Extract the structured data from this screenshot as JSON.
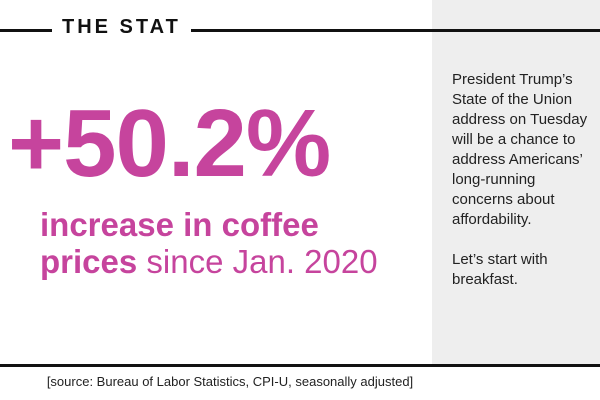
{
  "header": {
    "title": "THE STAT"
  },
  "stat": {
    "value": "+50.2%",
    "headline_bold": "increase in coffee prices",
    "headline_rest": "since Jan. 2020"
  },
  "sidebar": {
    "paragraphs": [
      "President Trump’s State of the Union address on Tuesday will be a chance to address Americans’ long-running concerns about affordability.",
      "Let’s start with breakfast."
    ]
  },
  "footer": {
    "source": "[source: Bureau of Labor Statistics, CPI-U, seasonally adjusted]"
  }
}
